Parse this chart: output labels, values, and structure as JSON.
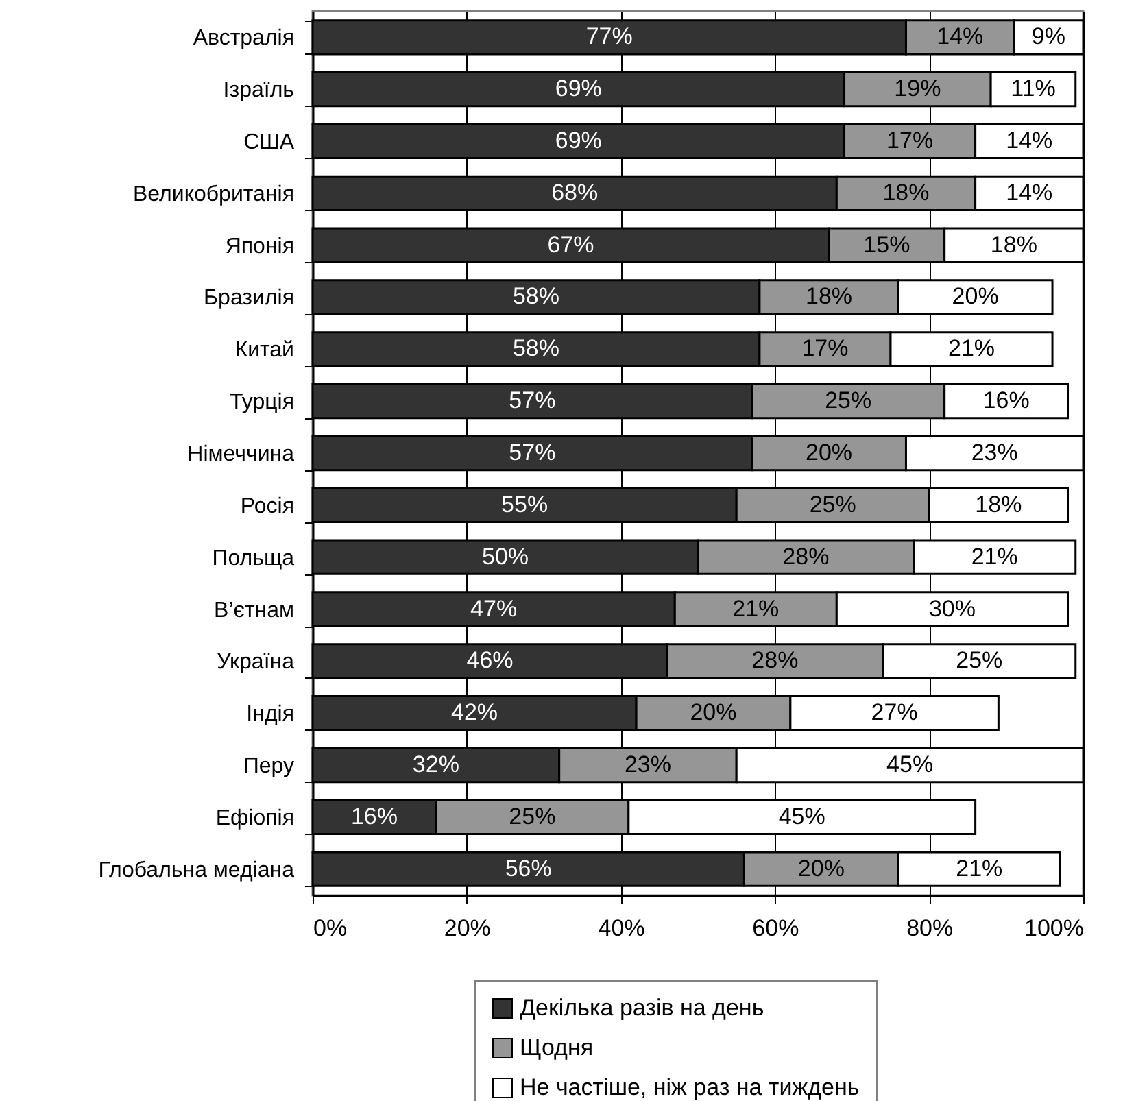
{
  "chart_data": {
    "type": "bar",
    "orientation": "horizontal",
    "stacked": true,
    "categories": [
      "Австралія",
      "Ізраїль",
      "США",
      "Великобританія",
      "Японія",
      "Бразилія",
      "Китай",
      "Турція",
      "Німеччина",
      "Росія",
      "Польща",
      "В’єтнам",
      "Україна",
      "Індія",
      "Перу",
      "Ефіопія",
      "Глобальна медіана"
    ],
    "series": [
      {
        "name": "Декілька разів на день",
        "color": "#333333",
        "values": [
          77,
          69,
          69,
          68,
          67,
          58,
          58,
          57,
          57,
          55,
          50,
          47,
          46,
          42,
          32,
          16,
          56
        ],
        "value_labels": [
          "77%",
          "69%",
          "69%",
          "68%",
          "67%",
          "58%",
          "58%",
          "57%",
          "57%",
          "55%",
          "50%",
          "47%",
          "46%",
          "42%",
          "32%",
          "16%",
          "56%"
        ]
      },
      {
        "name": "Щодня",
        "color": "#969696",
        "values": [
          14,
          19,
          17,
          18,
          15,
          18,
          17,
          25,
          20,
          25,
          28,
          21,
          28,
          20,
          23,
          25,
          20
        ],
        "value_labels": [
          "14%",
          "19%",
          "17%",
          "18%",
          "15%",
          "18%",
          "17%",
          "25%",
          "20%",
          "25%",
          "28%",
          "21%",
          "28%",
          "20%",
          "23%",
          "25%",
          "20%"
        ]
      },
      {
        "name": "Не частіше, ніж раз на тиждень",
        "color": "#ffffff",
        "values": [
          9,
          11,
          14,
          14,
          18,
          20,
          21,
          16,
          23,
          18,
          21,
          30,
          25,
          27,
          45,
          45,
          21
        ],
        "value_labels": [
          "9%",
          "11%",
          "14%",
          "14%",
          "18%",
          "20%",
          "21%",
          "16%",
          "23%",
          "18%",
          "21%",
          "30%",
          "25%",
          "27%",
          "45%",
          "45%",
          "21%"
        ]
      }
    ],
    "xlim": [
      0,
      100
    ],
    "xticks": [
      {
        "value": 0,
        "label": "0%"
      },
      {
        "value": 20,
        "label": "20%"
      },
      {
        "value": 40,
        "label": "40%"
      },
      {
        "value": 60,
        "label": "60%"
      },
      {
        "value": 80,
        "label": "80%"
      },
      {
        "value": 100,
        "label": "100%"
      }
    ],
    "grid": "x",
    "legend": "bottom"
  }
}
